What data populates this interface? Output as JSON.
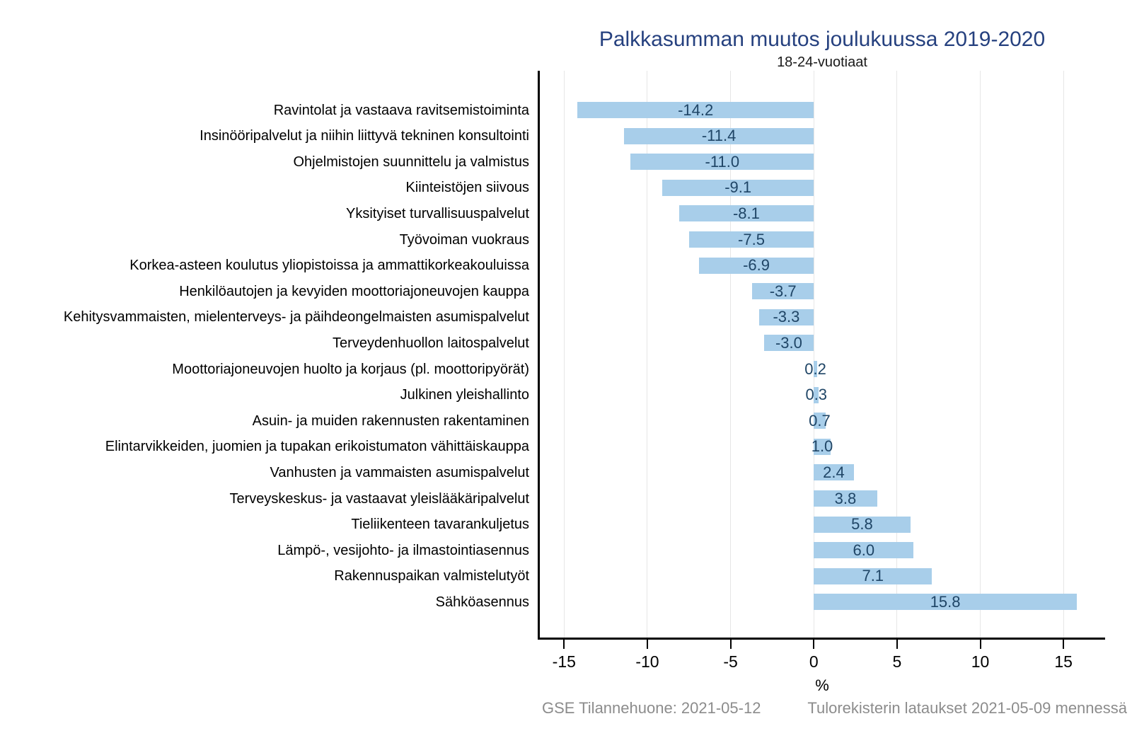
{
  "title": "Palkkasumman muutos joulukuussa 2019-2020",
  "subtitle": "18-24-vuotiaat",
  "footer": {
    "left_note": "GSE Tilannehuone: 2021-05-12",
    "right_note": "Tulorekisterin lataukset 2021-05-09 mennessä"
  },
  "colors": {
    "bar_fill": "#A8CEEA",
    "value_label": "#1F4566",
    "title_text": "#26417F",
    "gridline": "#E6E6E6",
    "axis_line": "#000000",
    "footer_text": "#8C8C8C"
  },
  "chart_data": {
    "type": "bar",
    "orientation": "horizontal",
    "title": "Palkkasumman muutos joulukuussa 2019-2020",
    "subtitle": "18-24-vuotiaat",
    "xlabel": "%",
    "xlim": [
      -16.5,
      17.5
    ],
    "xticks": [
      -15,
      -10,
      -5,
      0,
      5,
      10,
      15
    ],
    "grid": true,
    "legend": "none",
    "categories": [
      "Ravintolat ja vastaava ravitsemistoiminta",
      "Insinööripalvelut ja niihin liittyvä tekninen konsultointi",
      "Ohjelmistojen suunnittelu ja valmistus",
      "Kiinteistöjen siivous",
      "Yksityiset turvallisuuspalvelut",
      "Työvoiman vuokraus",
      "Korkea-asteen koulutus yliopistoissa ja ammattikorkeakouluissa",
      "Henkilöautojen ja kevyiden moottoriajoneuvojen kauppa",
      "Kehitysvammaisten, mielenterveys- ja päihdeongelmaisten asumispalvelut",
      "Terveydenhuollon laitospalvelut",
      "Moottoriajoneuvojen huolto ja korjaus (pl. moottoripyörät)",
      "Julkinen yleishallinto",
      "Asuin- ja muiden rakennusten rakentaminen",
      "Elintarvikkeiden, juomien ja tupakan erikoistumaton vähittäiskauppa",
      "Vanhusten ja vammaisten asumispalvelut",
      "Terveyskeskus- ja vastaavat yleislääkäripalvelut",
      "Tieliikenteen tavarankuljetus",
      "Lämpö-, vesijohto- ja ilmastointiasennus",
      "Rakennuspaikan valmistelutyöt",
      "Sähköasennus"
    ],
    "values": [
      -14.2,
      -11.4,
      -11.0,
      -9.1,
      -8.1,
      -7.5,
      -6.9,
      -3.7,
      -3.3,
      -3.0,
      0.2,
      0.3,
      0.7,
      1.0,
      2.4,
      3.8,
      5.8,
      6.0,
      7.1,
      15.8
    ],
    "value_labels": [
      "-14.2",
      "-11.4",
      "-11.0",
      "-9.1",
      "-8.1",
      "-7.5",
      "-6.9",
      "-3.7",
      "-3.3",
      "-3.0",
      "0.2",
      "0.3",
      "0.7",
      "1.0",
      "2.4",
      "3.8",
      "5.8",
      "6.0",
      "7.1",
      "15.8"
    ]
  }
}
